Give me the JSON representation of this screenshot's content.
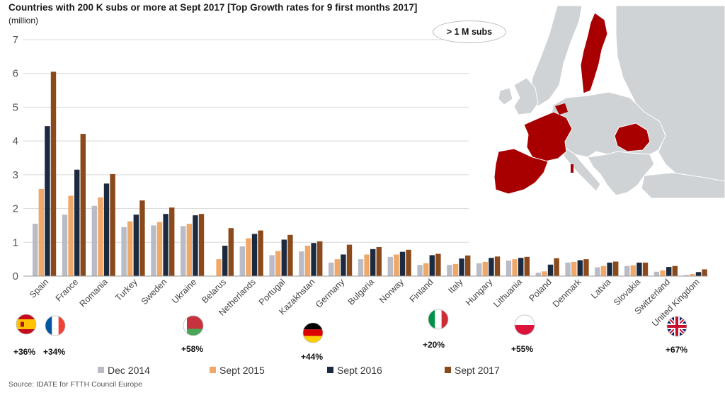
{
  "title": "Countries with 200 K subs or more at Sept 2017 [Top Growth rates for 9 first months 2017]",
  "unit": "(million)",
  "badge": "> 1 M subs",
  "source": "Source: IDATE for FTTH Council Europe",
  "colors": {
    "dec2014": "#b9bbc7",
    "sept2015": "#f0a868",
    "sept2016": "#1c2a40",
    "sept2017": "#8a4a1b",
    "map_land": "#cfd3d6",
    "map_highlight": "#a80000",
    "map_sea": "#ffffff"
  },
  "growth": [
    {
      "country": "Spain",
      "label": "+36%",
      "flag": "spain-flag-icon"
    },
    {
      "country": "France",
      "label": "+34%",
      "flag": "france-flag-icon"
    },
    {
      "country": "Belarus",
      "label": "+58%",
      "flag": "belarus-flag-icon"
    },
    {
      "country": "Germany",
      "label": "+44%",
      "flag": "germany-flag-icon"
    },
    {
      "country": "Italy",
      "label": "+20%",
      "flag": "italy-flag-icon"
    },
    {
      "country": "Poland",
      "label": "+55%",
      "flag": "poland-flag-icon"
    },
    {
      "country": "United Kingdom",
      "label": "+67%",
      "flag": "uk-flag-icon"
    }
  ],
  "map_highlighted": [
    "Spain",
    "France",
    "Romania",
    "Sweden"
  ],
  "chart_data": {
    "type": "bar",
    "title": "Countries with 200 K subs or more at Sept 2017 [Top Growth rates for 9 first months 2017]",
    "ylabel": "(million)",
    "ylim": [
      0,
      7
    ],
    "yticks": [
      0,
      1,
      2,
      3,
      4,
      5,
      6,
      7
    ],
    "grid": true,
    "legend_position": "bottom",
    "categories": [
      "Spain",
      "France",
      "Romania",
      "Turkey",
      "Sweden",
      "Ukraine",
      "Belarus",
      "Netherlands",
      "Portugal",
      "Kazakhstan",
      "Germany",
      "Bulgaria",
      "Norway",
      "Finland",
      "Italy",
      "Hungary",
      "Lithuania",
      "Poland",
      "Denmark",
      "Latvia",
      "Slovakia",
      "Switzerland",
      "United Kingdom"
    ],
    "series": [
      {
        "name": "Dec 2014",
        "values": [
          1.55,
          1.82,
          2.08,
          1.45,
          1.5,
          1.48,
          0,
          0.88,
          0.62,
          0.73,
          0.4,
          0.5,
          0.57,
          0.33,
          0.33,
          0.38,
          0.46,
          0.1,
          0.4,
          0.26,
          0.3,
          0.13,
          0.03
        ]
      },
      {
        "name": "Sept 2015",
        "values": [
          2.58,
          2.38,
          2.33,
          1.62,
          1.6,
          1.55,
          0.5,
          1.12,
          0.74,
          0.9,
          0.5,
          0.64,
          0.64,
          0.38,
          0.36,
          0.42,
          0.5,
          0.14,
          0.42,
          0.3,
          0.32,
          0.17,
          0.06
        ]
      },
      {
        "name": "Sept 2016",
        "values": [
          4.44,
          3.15,
          2.74,
          1.82,
          1.84,
          1.8,
          0.9,
          1.25,
          1.08,
          0.98,
          0.64,
          0.8,
          0.72,
          0.62,
          0.52,
          0.54,
          0.54,
          0.34,
          0.47,
          0.4,
          0.4,
          0.27,
          0.12
        ]
      },
      {
        "name": "Sept 2017",
        "values": [
          6.05,
          4.21,
          3.02,
          2.24,
          2.03,
          1.84,
          1.42,
          1.35,
          1.22,
          1.03,
          0.93,
          0.86,
          0.78,
          0.66,
          0.61,
          0.58,
          0.57,
          0.53,
          0.5,
          0.43,
          0.4,
          0.3,
          0.2
        ]
      }
    ]
  }
}
